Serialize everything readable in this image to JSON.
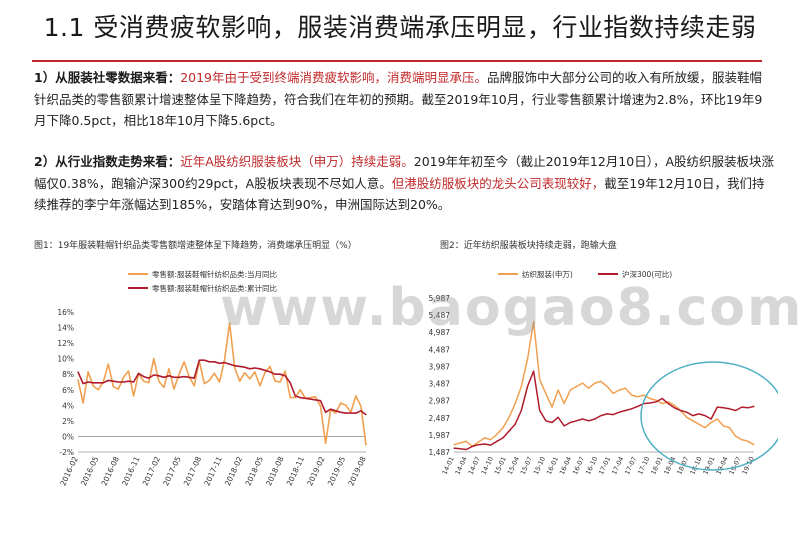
{
  "slide": {
    "title": "1.1 受消费疲软影响，服装消费端承压明显，行业指数持续走弱",
    "para1": {
      "lead": "1）从服装社零数据来看：",
      "highlight": "2019年由于受到终端消费疲软影响，消费端明显承压。",
      "rest": "品牌服饰中大部分公司的收入有所放缓，服装鞋帽针织品类的零售额累计增速整体呈下降趋势，符合我们在年初的预期。截至2019年10月，行业零售额累计增速为2.8%，环比19年9月下降0.5pct，相比18年10月下降5.6pct。"
    },
    "para2": {
      "lead": "2）从行业指数走势来看：",
      "highlight1": "近年A股纺织服装板块（申万）持续走弱。",
      "mid": "2019年年初至今（截止2019年12月10日），A股纺织服装板块涨幅仅0.38%，跑输沪深300约29pct，A股板块表现不尽如人意。",
      "highlight2": "但港股纺服板块的龙头公司表现较好，",
      "rest": "截至19年12月10日，我们持续推荐的李宁年涨幅达到185%，安踏体育达到90%，申洲国际达到20%。"
    },
    "caption1": "图1：19年服装鞋帽针织品类零售额增速整体呈下降趋势，消费端承压明显（%）",
    "caption2": "图2：近年纺织服装板块持续走弱，跑输大盘",
    "watermark": "www.baogao8.com"
  },
  "colors": {
    "orange": "#f0a050",
    "darkred": "#b01c2e",
    "accent_red": "#c0282a",
    "circle": "#4fb0c4"
  },
  "chart_data": [
    {
      "type": "line",
      "legend_position": "top",
      "ylim": [
        -2,
        16
      ],
      "yticks": [
        "-2%",
        "0%",
        "2%",
        "4%",
        "6%",
        "8%",
        "10%",
        "12%",
        "14%",
        "16%"
      ],
      "x_tick_labels": [
        "2016-02",
        "2016-05",
        "2016-08",
        "2016-11",
        "2017-02",
        "2017-05",
        "2017-08",
        "2017-11",
        "2018-02",
        "2018-05",
        "2018-08",
        "2018-11",
        "2019-02",
        "2019-05",
        "2019-08"
      ],
      "series": [
        {
          "name": "零售额:服装鞋帽针纺织品类:当月同比",
          "color": "#f0a050",
          "values": [
            7.3,
            4.3,
            8.3,
            6.5,
            6.0,
            7.0,
            9.3,
            6.4,
            6.1,
            7.6,
            8.4,
            5.2,
            8.1,
            7.1,
            6.9,
            10.0,
            7.1,
            6.3,
            8.7,
            6.1,
            8.0,
            9.6,
            7.7,
            6.5,
            9.7,
            6.8,
            7.2,
            8.1,
            7.0,
            9.8,
            14.6,
            8.9,
            7.1,
            8.2,
            7.4,
            8.3,
            6.5,
            8.2,
            9.0,
            7.1,
            7.0,
            8.4,
            5.0,
            5.0,
            6.0,
            4.9,
            5.0,
            5.1,
            3.9,
            -0.9,
            3.4,
            3.0,
            4.3,
            4.0,
            3.1,
            5.2,
            3.9,
            -1.1
          ]
        },
        {
          "name": "零售额:服装鞋帽针纺织品类:累计同比",
          "color": "#b01c2e",
          "values": [
            8.3,
            6.8,
            7.0,
            6.9,
            6.9,
            6.9,
            7.2,
            7.1,
            7.0,
            7.0,
            7.1,
            7.0,
            8.1,
            7.7,
            7.5,
            7.9,
            7.8,
            7.6,
            7.8,
            7.6,
            7.6,
            7.7,
            7.6,
            7.5,
            9.8,
            9.8,
            9.6,
            9.6,
            9.4,
            9.5,
            9.3,
            9.1,
            9.0,
            8.9,
            8.7,
            8.8,
            8.7,
            8.5,
            8.3,
            8.0,
            8.0,
            7.8,
            6.9,
            5.2,
            5.0,
            4.9,
            4.8,
            4.7,
            4.6,
            3.1,
            3.5,
            3.3,
            3.1,
            3.0,
            3.0,
            3.0,
            3.3,
            2.8
          ]
        }
      ]
    },
    {
      "type": "line",
      "legend_position": "top",
      "ylim": [
        1487,
        5987
      ],
      "yticks": [
        "1,487",
        "1,987",
        "2,487",
        "2,987",
        "3,487",
        "3,987",
        "4,487",
        "4,987",
        "5,487",
        "5,987"
      ],
      "x_tick_labels": [
        "14-01",
        "14-04",
        "14-07",
        "14-10",
        "15-01",
        "15-04",
        "15-07",
        "15-10",
        "16-01",
        "16-04",
        "16-07",
        "16-10",
        "17-01",
        "17-04",
        "17-07",
        "17-10",
        "18-01",
        "18-04",
        "18-07",
        "18-10",
        "19-01",
        "19-04",
        "19-07",
        "19-10"
      ],
      "annotation": "circle highlighting 2018–2019 divergence",
      "series": [
        {
          "name": "纺织服装(申万)",
          "color": "#f0a050",
          "values": [
            1700,
            1750,
            1800,
            1650,
            1780,
            1900,
            1850,
            2000,
            2200,
            2500,
            2900,
            3400,
            4200,
            5300,
            3600,
            3200,
            2800,
            3300,
            2900,
            3300,
            3400,
            3500,
            3350,
            3500,
            3550,
            3400,
            3200,
            3300,
            3350,
            3150,
            3100,
            3150,
            3050,
            3000,
            2900,
            2950,
            2850,
            2700,
            2500,
            2400,
            2300,
            2200,
            2350,
            2450,
            2250,
            2200,
            1950,
            1850,
            1800,
            1700
          ]
        },
        {
          "name": "沪深300(可比)",
          "color": "#b01c2e",
          "values": [
            1600,
            1580,
            1560,
            1650,
            1700,
            1720,
            1690,
            1800,
            1900,
            2100,
            2300,
            2700,
            3400,
            3850,
            2700,
            2400,
            2350,
            2500,
            2250,
            2350,
            2400,
            2450,
            2400,
            2450,
            2550,
            2600,
            2580,
            2650,
            2700,
            2750,
            2820,
            2900,
            2920,
            2950,
            3050,
            2900,
            2780,
            2700,
            2650,
            2550,
            2600,
            2550,
            2450,
            2800,
            2780,
            2750,
            2700,
            2800,
            2780,
            2820
          ]
        }
      ]
    }
  ]
}
